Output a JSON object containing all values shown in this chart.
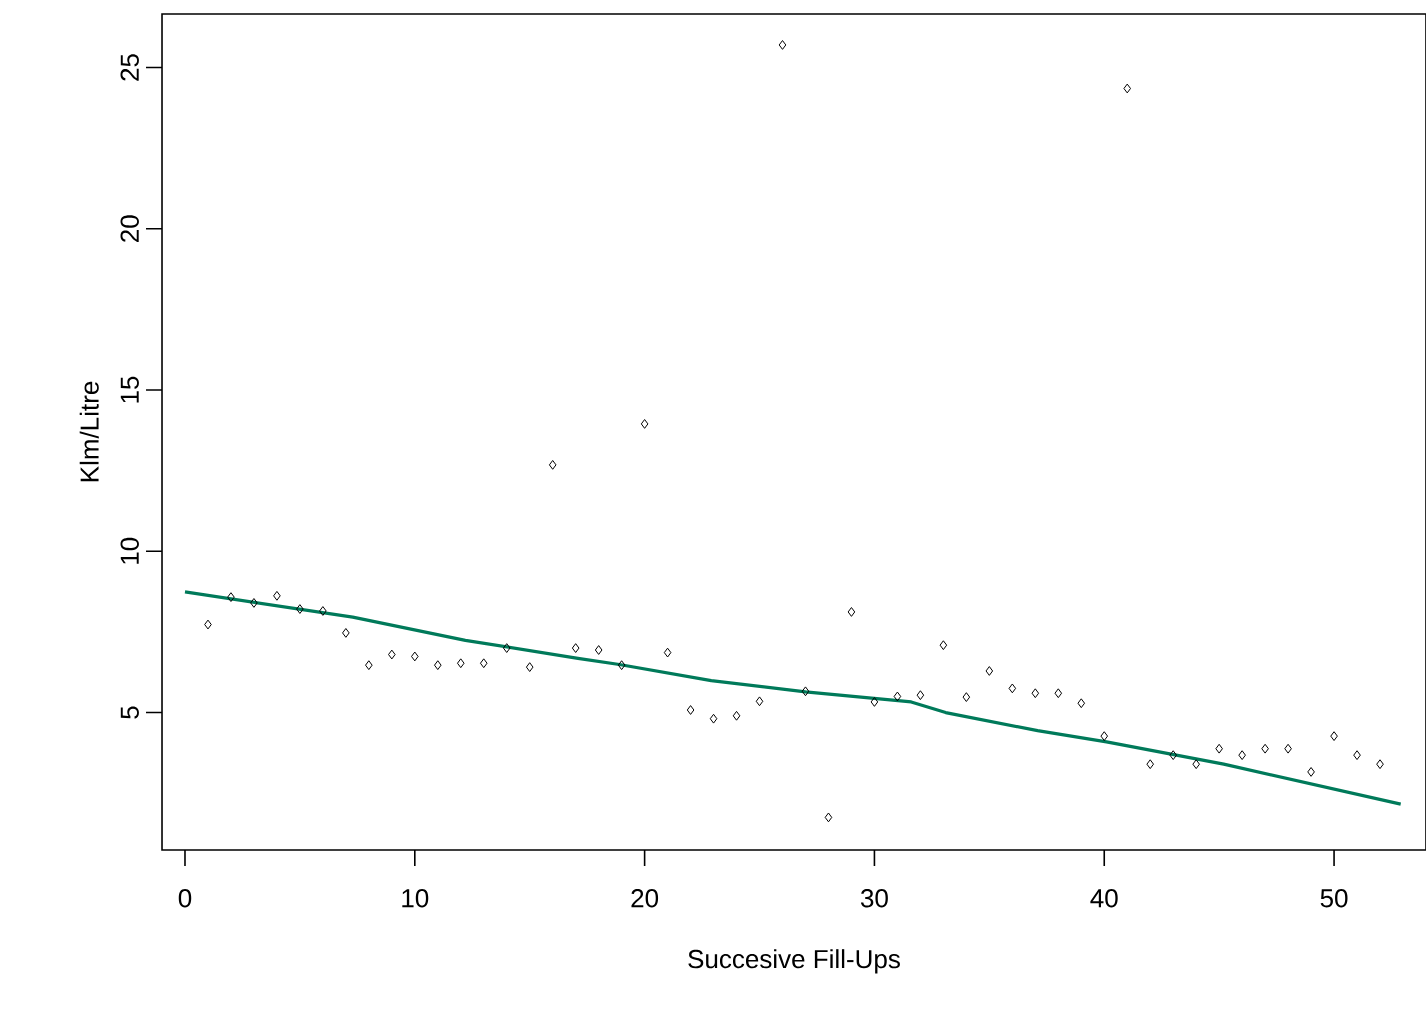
{
  "chart_data": {
    "type": "scatter",
    "xlabel": "Succesive Fill-Ups",
    "ylabel": "Klm/Litre",
    "xlim": [
      -1,
      54
    ],
    "ylim": [
      0.74,
      26.66
    ],
    "xticks": [
      0,
      10,
      20,
      30,
      40,
      50
    ],
    "yticks": [
      5,
      10,
      15,
      20,
      25
    ],
    "grid": false,
    "series": [
      {
        "marker": "diamond",
        "color": "#000000",
        "x": [
          1,
          2,
          3,
          4,
          5,
          6,
          7,
          8,
          9,
          10,
          11,
          12,
          13,
          14,
          15,
          16,
          17,
          18,
          19,
          20,
          21,
          22,
          23,
          24,
          25,
          26,
          27,
          28,
          29,
          30,
          31,
          32,
          33,
          34,
          35,
          36,
          37,
          38,
          39,
          40,
          41,
          42,
          43,
          44,
          45,
          46,
          47,
          48,
          49,
          50,
          51,
          52
        ],
        "values": [
          7.73,
          8.58,
          8.4,
          8.62,
          8.21,
          8.15,
          7.47,
          6.47,
          6.8,
          6.74,
          6.47,
          6.53,
          6.53,
          7.0,
          6.41,
          12.68,
          7.0,
          6.94,
          6.47,
          13.95,
          6.86,
          5.08,
          4.81,
          4.9,
          5.35,
          25.7,
          5.66,
          1.75,
          8.12,
          5.33,
          5.5,
          5.54,
          7.09,
          5.48,
          6.29,
          5.75,
          5.6,
          5.6,
          5.29,
          4.27,
          24.35,
          3.4,
          3.68,
          3.4,
          3.88,
          3.68,
          3.88,
          3.88,
          3.16,
          4.27,
          3.68,
          3.4
        ]
      },
      {
        "type": "line",
        "marker": "none",
        "line_style": "solid",
        "color": "#007a5a",
        "x": [
          0,
          7.3,
          12.2,
          17.1,
          18.9,
          22.9,
          27,
          31.6,
          33.1,
          37.1,
          40.1,
          45.2,
          52.9
        ],
        "values": [
          8.74,
          7.96,
          7.24,
          6.68,
          6.49,
          5.99,
          5.64,
          5.33,
          5.0,
          4.44,
          4.09,
          3.4,
          2.16
        ]
      }
    ]
  }
}
